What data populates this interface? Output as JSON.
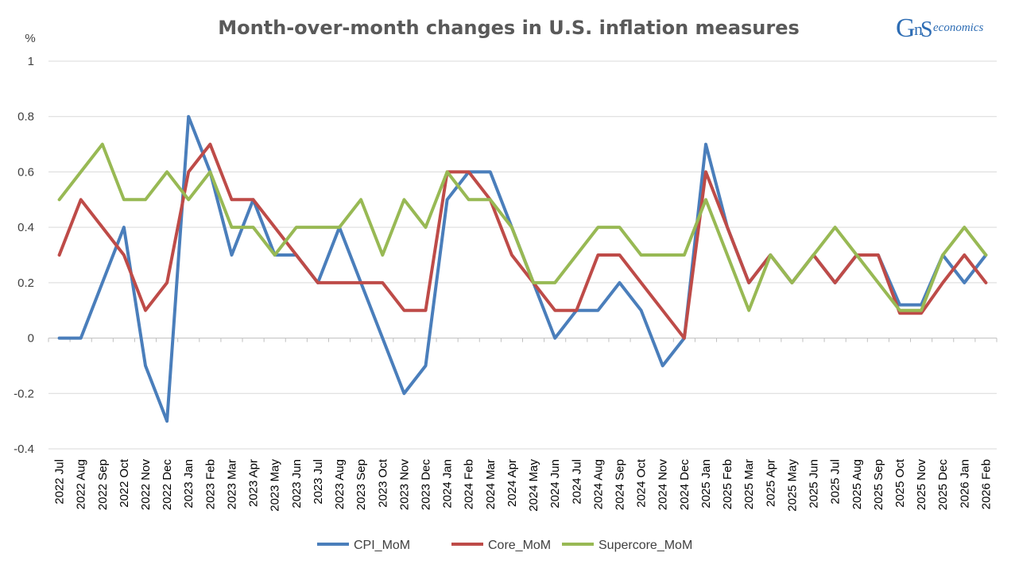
{
  "chart_data": {
    "type": "line",
    "title": "Month-over-month changes in U.S. inflation measures",
    "ylabel": "%",
    "ylim": [
      -0.4,
      1
    ],
    "yticks": [
      -0.4,
      -0.2,
      0,
      0.2,
      0.4,
      0.6,
      0.8,
      1
    ],
    "ytick_labels": [
      "-0.4",
      "-0.2",
      "0",
      "0.2",
      "0.4",
      "0.6",
      "0.8",
      "1"
    ],
    "categories": [
      "2022 Jul",
      "2022 Aug",
      "2022 Sep",
      "2022 Oct",
      "2022 Nov",
      "2022 Dec",
      "2023 Jan",
      "2023 Feb",
      "2023 Mar",
      "2023 Apr",
      "2023 May",
      "2023 Jun",
      "2023 Jul",
      "2023 Aug",
      "2023 Sep",
      "2023 Oct",
      "2023 Nov",
      "2023 Dec",
      "2024 Jan",
      "2024 Feb",
      "2024 Mar",
      "2024 Apr",
      "2024 May",
      "2024 Jun",
      "2024 Jul",
      "2024 Aug",
      "2024 Sep",
      "2024 Oct",
      "2024 Nov",
      "2024 Dec",
      "2025 Jan",
      "2025 Feb",
      "2025 Mar",
      "2025 Apr",
      "2025 May",
      "2025 Jun",
      "2025 Jul",
      "2025 Aug",
      "2025 Sep",
      "2025 Oct",
      "2025 Nov",
      "2025 Dec",
      "2026 Jan",
      "2026 Feb"
    ],
    "series": [
      {
        "name": "CPI_MoM",
        "color": "#4a7ebb",
        "values": [
          0,
          0,
          0.2,
          0.4,
          -0.1,
          -0.3,
          0.8,
          0.6,
          0.3,
          0.5,
          0.3,
          0.3,
          0.2,
          0.4,
          0.2,
          0,
          -0.2,
          -0.1,
          0.5,
          0.6,
          0.6,
          0.4,
          0.2,
          0,
          0.1,
          0.1,
          0.2,
          0.1,
          -0.1,
          0,
          0.7,
          0.4,
          0.2,
          0.3,
          0.2,
          0.3,
          0.2,
          0.3,
          0.3,
          0.12,
          0.12,
          0.3,
          0.2,
          0.3
        ]
      },
      {
        "name": "Core_MoM",
        "color": "#be4b48",
        "values": [
          0.3,
          0.5,
          0.4,
          0.3,
          0.1,
          0.2,
          0.6,
          0.7,
          0.5,
          0.5,
          0.4,
          0.3,
          0.2,
          0.2,
          0.2,
          0.2,
          0.1,
          0.1,
          0.6,
          0.6,
          0.5,
          0.3,
          0.2,
          0.1,
          0.1,
          0.3,
          0.3,
          0.2,
          0.1,
          0,
          0.6,
          0.4,
          0.2,
          0.3,
          0.2,
          0.3,
          0.2,
          0.3,
          0.3,
          0.09,
          0.09,
          0.2,
          0.3,
          0.2
        ]
      },
      {
        "name": "Supercore_MoM",
        "color": "#98b954",
        "values": [
          0.5,
          0.6,
          0.7,
          0.5,
          0.5,
          0.6,
          0.5,
          0.6,
          0.4,
          0.4,
          0.3,
          0.4,
          0.4,
          0.4,
          0.5,
          0.3,
          0.5,
          0.4,
          0.6,
          0.5,
          0.5,
          0.4,
          0.2,
          0.2,
          0.3,
          0.4,
          0.4,
          0.3,
          0.3,
          0.3,
          0.5,
          0.3,
          0.1,
          0.3,
          0.2,
          0.3,
          0.4,
          0.3,
          0.2,
          0.1,
          0.1,
          0.3,
          0.4,
          0.3
        ]
      }
    ],
    "legend_position": "bottom",
    "grid": "horizontal"
  },
  "brand": {
    "logo_letters": "GnS",
    "logo_suffix": "economics"
  }
}
